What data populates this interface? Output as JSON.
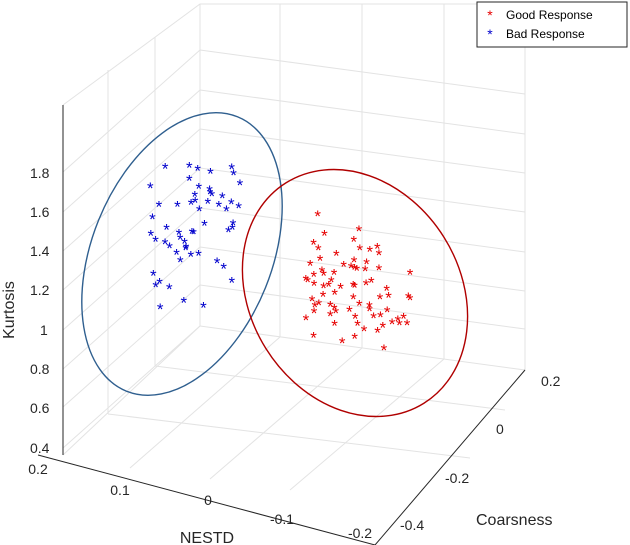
{
  "chart_data": {
    "type": "scatter",
    "title": "",
    "axes": {
      "x": {
        "label": "NESTD",
        "ticks": [
          "0.2",
          "0.1",
          "0",
          "-0.1",
          "-0.2"
        ]
      },
      "y": {
        "label": "Coarsness",
        "ticks": [
          "-0.4",
          "-0.2",
          "0",
          "0.2"
        ]
      },
      "z": {
        "label": "Kurtosis",
        "ticks": [
          "0.4",
          "0.6",
          "0.8",
          "1",
          "1.2",
          "1.4",
          "1.6",
          "1.8"
        ]
      }
    },
    "legend": {
      "placement": "top-right",
      "entries": [
        {
          "label": "Good Response",
          "color": "#e60000",
          "marker": "*"
        },
        {
          "label": "Bad Response",
          "color": "#0000cc",
          "marker": "*"
        }
      ]
    },
    "series": [
      {
        "name": "Good Response",
        "color": "#e60000",
        "cluster_outline_color": "#b00000",
        "points_zlevel": [
          1.75,
          1.66,
          1.62,
          1.58,
          1.55,
          1.52,
          1.5,
          1.48,
          1.47,
          1.45,
          1.44,
          1.42,
          1.41,
          1.4,
          1.38,
          1.37,
          1.36,
          1.35,
          1.33,
          1.32,
          1.31,
          1.3,
          1.29,
          1.28,
          1.27,
          1.26,
          1.25,
          1.24,
          1.23,
          1.22,
          1.21,
          1.2,
          1.19,
          1.18,
          1.17,
          1.16,
          1.15,
          1.14,
          1.13,
          1.12,
          1.11,
          1.1,
          1.09,
          1.08,
          1.07,
          1.06,
          1.05,
          1.04,
          1.03,
          1.02,
          1.01,
          1.0,
          0.99,
          0.98,
          0.97,
          0.96,
          0.95,
          0.94,
          0.93,
          0.92,
          0.91,
          0.9,
          0.89,
          0.88,
          0.87,
          0.86,
          0.85,
          0.84,
          0.83,
          0.82,
          0.8,
          0.78,
          0.76,
          0.74,
          0.72,
          0.7
        ]
      },
      {
        "name": "Bad Response",
        "color": "#0000cc",
        "cluster_outline_color": "#2f5f8f",
        "points_zlevel": [
          1.92,
          1.9,
          1.88,
          1.86,
          1.84,
          1.82,
          1.8,
          1.78,
          1.76,
          1.74,
          1.72,
          1.7,
          1.68,
          1.66,
          1.64,
          1.62,
          1.6,
          1.58,
          1.56,
          1.54,
          1.52,
          1.5,
          1.48,
          1.46,
          1.44,
          1.42,
          1.4,
          1.38,
          1.36,
          1.34,
          1.32,
          1.3,
          1.28,
          1.26,
          1.24,
          1.22,
          1.2,
          1.18,
          1.16,
          1.14,
          1.12,
          1.1,
          1.08,
          1.06,
          1.04,
          1.02,
          1.0,
          0.98,
          0.95,
          0.92,
          0.9,
          0.87,
          0.85,
          0.82,
          0.8,
          0.77
        ]
      }
    ]
  }
}
